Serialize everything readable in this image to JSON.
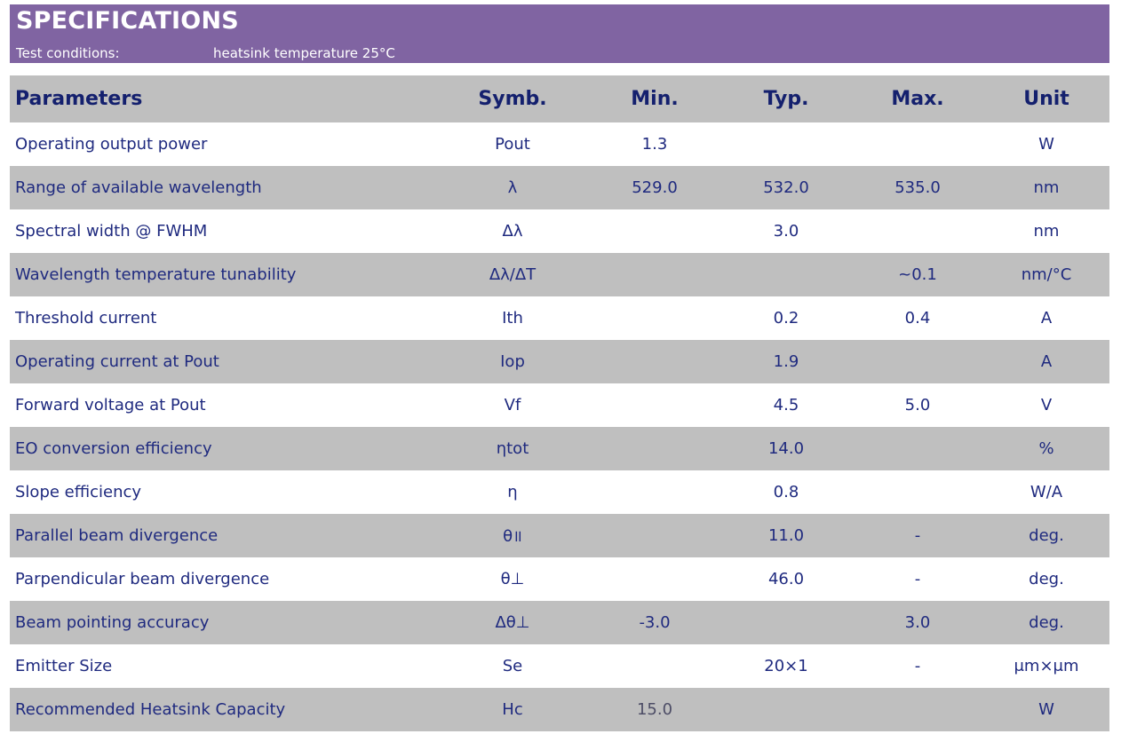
{
  "header": {
    "title": "SPECIFICATIONS",
    "conditions_label": "Test conditions:",
    "conditions_value": "heatsink temperature 25°C"
  },
  "table": {
    "columns": {
      "param": "Parameters",
      "symb": "Symb.",
      "min": "Min.",
      "typ": "Typ.",
      "max": "Max.",
      "unit": "Unit"
    },
    "rows": [
      {
        "param": "Operating output power",
        "symb": "Pout",
        "min": "1.3",
        "typ": "",
        "max": "",
        "unit": "W"
      },
      {
        "param": "Range of available wavelength",
        "symb": "λ",
        "min": "529.0",
        "typ": "532.0",
        "max": "535.0",
        "unit": "nm"
      },
      {
        "param": "Spectral width @ FWHM",
        "symb": "Δλ",
        "min": "",
        "typ": "3.0",
        "max": "",
        "unit": "nm"
      },
      {
        "param": "Wavelength temperature tunability",
        "symb": "Δλ/ΔT",
        "min": "",
        "typ": "",
        "max": "~0.1",
        "unit": "nm/°C"
      },
      {
        "param": "Threshold current",
        "symb": "Ith",
        "min": "",
        "typ": "0.2",
        "max": "0.4",
        "unit": "A"
      },
      {
        "param": "Operating current at Pout",
        "symb": "Iop",
        "min": "",
        "typ": "1.9",
        "max": "",
        "unit": "A"
      },
      {
        "param": "Forward voltage at Pout",
        "symb": "Vf",
        "min": "",
        "typ": "4.5",
        "max": "5.0",
        "unit": "V"
      },
      {
        "param": "EO conversion efficiency",
        "symb": "ηtot",
        "min": "",
        "typ": "14.0",
        "max": "",
        "unit": "%"
      },
      {
        "param": "Slope efficiency",
        "symb": "η",
        "min": "",
        "typ": "0.8",
        "max": "",
        "unit": "W/A"
      },
      {
        "param": "Parallel beam divergence",
        "symb": "θ॥",
        "min": "",
        "typ": "11.0",
        "max": "-",
        "unit": "deg."
      },
      {
        "param": "Parpendicular beam divergence",
        "symb": "θ⊥",
        "min": "",
        "typ": "46.0",
        "max": "-",
        "unit": "deg."
      },
      {
        "param": "Beam pointing accuracy",
        "symb": "Δθ⊥",
        "min": "-3.0",
        "typ": "",
        "max": "3.0",
        "unit": "deg."
      },
      {
        "param": "Emitter Size",
        "symb": "Se",
        "min": "",
        "typ": "20×1",
        "max": "-",
        "unit": "μm×μm"
      },
      {
        "param": "Recommended Heatsink Capacity",
        "symb": "Hc",
        "min": "15.0",
        "typ": "",
        "max": "",
        "unit": "W"
      }
    ]
  },
  "colors": {
    "banner": "#8064a2",
    "stripe": "#bfbfbf",
    "text": "#1f2a7f"
  }
}
